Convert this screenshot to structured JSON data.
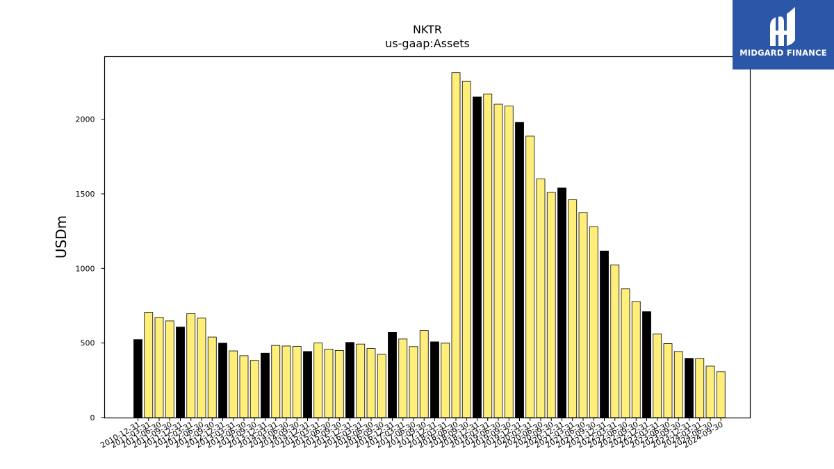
{
  "brand": {
    "name": "MIDGARD FINANCE",
    "bg_color": "#2c57a8"
  },
  "colors": {
    "bar_default": "#ffee7a",
    "bar_highlight": "#000000",
    "bar_edge": "#000000"
  },
  "chart_data": {
    "type": "bar",
    "title": "NKTR",
    "subtitle": "us-gaap:Assets",
    "ylabel": "USDm",
    "xlabel": "",
    "ylim": [
      0,
      2420
    ],
    "yticks": [
      0,
      500,
      1000,
      1500,
      2000
    ],
    "grid": false,
    "legend": "none",
    "categories": [
      "2010-12-31",
      "2011-03-31",
      "2011-06-30",
      "2011-09-30",
      "2011-12-31",
      "2012-03-31",
      "2012-06-30",
      "2012-09-30",
      "2012-12-31",
      "2013-03-31",
      "2013-06-30",
      "2013-09-30",
      "2013-12-31",
      "2014-03-31",
      "2014-06-30",
      "2014-09-30",
      "2014-12-31",
      "2015-03-31",
      "2015-06-30",
      "2015-09-30",
      "2015-12-31",
      "2016-03-31",
      "2016-06-30",
      "2016-09-30",
      "2016-12-31",
      "2017-03-31",
      "2017-06-30",
      "2017-09-30",
      "2017-12-31",
      "2018-03-31",
      "2018-06-30",
      "2018-09-30",
      "2018-12-31",
      "2019-03-31",
      "2019-06-30",
      "2019-09-30",
      "2019-12-31",
      "2020-03-31",
      "2020-06-30",
      "2020-09-30",
      "2020-12-31",
      "2021-03-31",
      "2021-06-30",
      "2021-09-30",
      "2021-12-31",
      "2022-03-31",
      "2022-06-30",
      "2022-09-30",
      "2022-12-31",
      "2023-03-31",
      "2023-06-30",
      "2023-09-30",
      "2023-12-31",
      "2024-03-31",
      "2024-06-30",
      "2024-09-30"
    ],
    "values": [
      523,
      705,
      672,
      648,
      607,
      697,
      667,
      540,
      499,
      447,
      415,
      383,
      432,
      484,
      480,
      477,
      443,
      500,
      459,
      450,
      504,
      493,
      463,
      424,
      571,
      527,
      476,
      584,
      508,
      499,
      2312,
      2254,
      2150,
      2170,
      2101,
      2089,
      1979,
      1887,
      1600,
      1510,
      1540,
      1460,
      1375,
      1280,
      1117,
      1024,
      863,
      778,
      710,
      560,
      496,
      443,
      397,
      397,
      345,
      308
    ],
    "highlight": [
      true,
      false,
      false,
      false,
      true,
      false,
      false,
      false,
      true,
      false,
      false,
      false,
      true,
      false,
      false,
      false,
      true,
      false,
      false,
      false,
      true,
      false,
      false,
      false,
      true,
      false,
      false,
      false,
      true,
      false,
      false,
      false,
      true,
      false,
      false,
      false,
      true,
      false,
      false,
      false,
      true,
      false,
      false,
      false,
      true,
      false,
      false,
      false,
      true,
      false,
      false,
      false,
      true,
      false,
      false,
      false
    ]
  }
}
